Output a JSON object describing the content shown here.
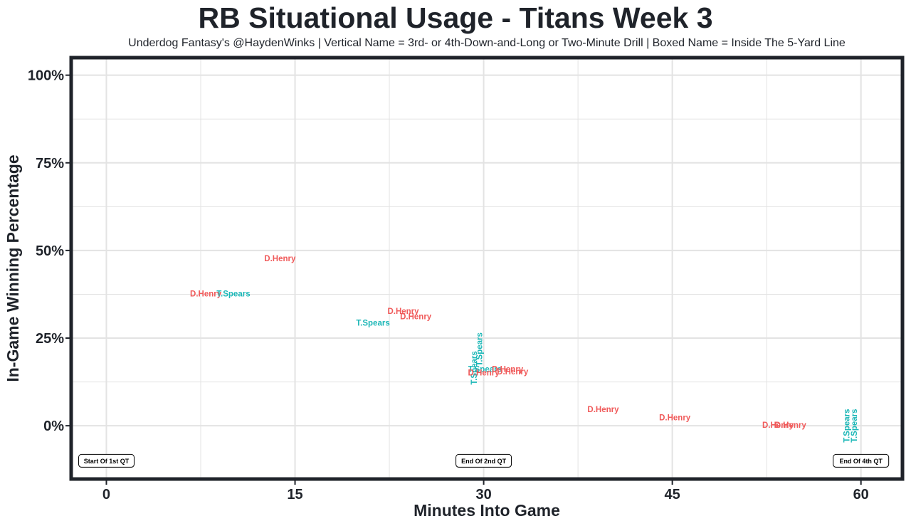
{
  "chart_data": {
    "type": "scatter",
    "title": "RB Situational Usage - Titans Week 3",
    "subtitle": "Underdog Fantasy's @HaydenWinks | Vertical Name = 3rd- or 4th-Down-and-Long or Two-Minute Drill | Boxed Name = Inside The 5-Yard Line",
    "xlabel": "Minutes Into Game",
    "ylabel": "In-Game Winning Percentage",
    "xlim": [
      -2.8,
      63.3
    ],
    "ylim": [
      -15.2,
      105.0
    ],
    "x_ticks": [
      0,
      15,
      30,
      45,
      60
    ],
    "x_tick_labels": [
      "0",
      "15",
      "30",
      "45",
      "60"
    ],
    "y_ticks": [
      0,
      25,
      50,
      75,
      100
    ],
    "y_tick_labels": [
      "0%",
      "25%",
      "50%",
      "75%",
      "100%"
    ],
    "grid": true,
    "colors": {
      "D.Henry": "#f05a5a",
      "T.Spears": "#1cb7b7",
      "frame": "#1f232a",
      "grid": "#e3e3e3"
    },
    "points": [
      {
        "label": "D.Henry",
        "x": 13.8,
        "y": 47.5,
        "vertical": false
      },
      {
        "label": "D.Henry",
        "x": 7.9,
        "y": 37.5,
        "vertical": false
      },
      {
        "label": "T.Spears",
        "x": 10.1,
        "y": 37.5,
        "vertical": false
      },
      {
        "label": "D.Henry",
        "x": 23.6,
        "y": 32.5,
        "vertical": false
      },
      {
        "label": "D.Henry",
        "x": 24.6,
        "y": 31.0,
        "vertical": false
      },
      {
        "label": "T.Spears",
        "x": 21.2,
        "y": 29.2,
        "vertical": false
      },
      {
        "label": "T.Spears",
        "x": 29.7,
        "y": 21.8,
        "vertical": true
      },
      {
        "label": "T.Spears",
        "x": 29.3,
        "y": 16.5,
        "vertical": true
      },
      {
        "label": "T.Spears",
        "x": 30.1,
        "y": 16.0,
        "vertical": false
      },
      {
        "label": "D.Henry",
        "x": 31.9,
        "y": 16.0,
        "vertical": false
      },
      {
        "label": "D.Henry",
        "x": 32.3,
        "y": 15.3,
        "vertical": false
      },
      {
        "label": "D.Henry",
        "x": 30.0,
        "y": 15.0,
        "vertical": false
      },
      {
        "label": "D.Henry",
        "x": 39.5,
        "y": 4.5,
        "vertical": false
      },
      {
        "label": "D.Henry",
        "x": 45.2,
        "y": 2.2,
        "vertical": false
      },
      {
        "label": "D.Henry",
        "x": 53.4,
        "y": 0.0,
        "vertical": false
      },
      {
        "label": "D.Henry",
        "x": 54.4,
        "y": 0.0,
        "vertical": false
      },
      {
        "label": "T.Spears",
        "x": 58.9,
        "y": 0.0,
        "vertical": true
      },
      {
        "label": "T.Spears",
        "x": 59.5,
        "y": 0.0,
        "vertical": true
      }
    ],
    "annotations": [
      {
        "text": "Start Of 1st QT",
        "x": 0,
        "y": -10
      },
      {
        "text": "End Of 2nd QT",
        "x": 30,
        "y": -10
      },
      {
        "text": "End Of 4th QT",
        "x": 60,
        "y": -10
      }
    ]
  }
}
